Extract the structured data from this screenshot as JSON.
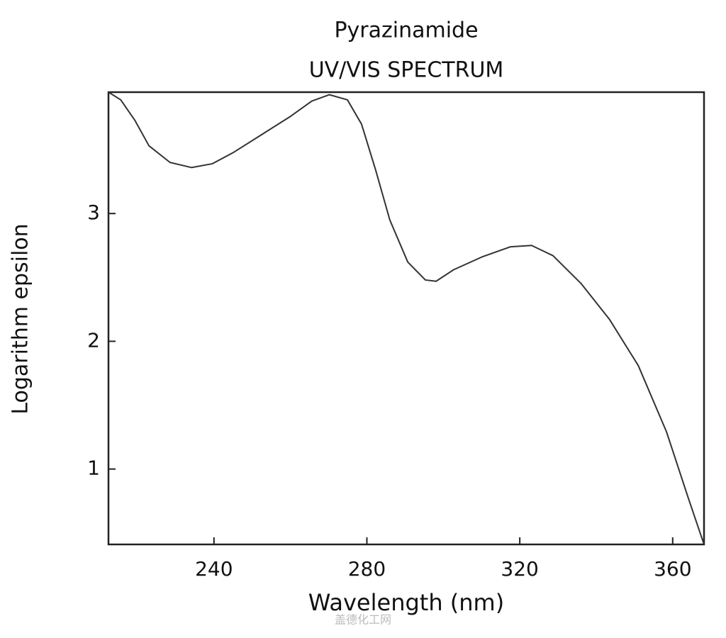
{
  "chart_data": {
    "type": "line",
    "title": "Pyrazinamide",
    "subtitle": "UV/VIS SPECTRUM",
    "x_label": "Wavelength (nm)",
    "y_label": "Logarithm epsilon",
    "watermark": "盖德化工网",
    "x": [
      212.4,
      215.6,
      219.3,
      223,
      228.5,
      234.1,
      239.6,
      245.2,
      252.6,
      260,
      265.6,
      270.2,
      274.9,
      278.6,
      282.3,
      286,
      290.7,
      295.3,
      298.1,
      302.7,
      310.1,
      317.6,
      323.1,
      328.7,
      336.1,
      343.5,
      351,
      358.4,
      363.9,
      368.2
    ],
    "series": [
      {
        "color": "#333333",
        "values": [
          3.95,
          3.89,
          3.73,
          3.53,
          3.4,
          3.36,
          3.39,
          3.48,
          3.62,
          3.76,
          3.88,
          3.93,
          3.89,
          3.7,
          3.34,
          2.95,
          2.62,
          2.48,
          2.47,
          2.56,
          2.66,
          2.74,
          2.75,
          2.67,
          2.45,
          2.17,
          1.81,
          1.29,
          0.79,
          0.41
        ]
      }
    ],
    "xlim": [
      212.4,
      368.2
    ],
    "ylim": [
      0.41,
      3.95
    ],
    "xticks": [
      240,
      280,
      320,
      360
    ],
    "yticks": [
      1,
      2,
      3
    ],
    "grid": false
  }
}
